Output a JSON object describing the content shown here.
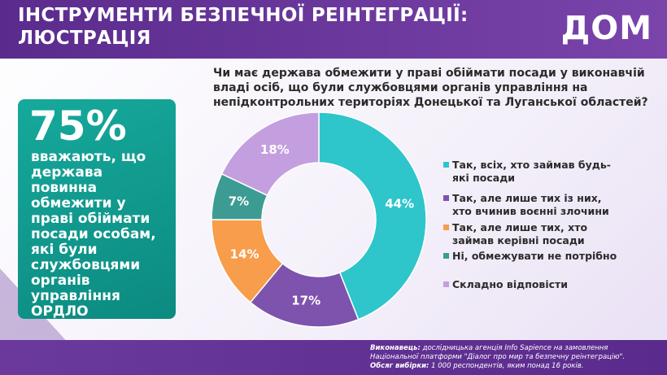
{
  "header": {
    "title_lines": [
      "ІНСТРУМЕНТИ БЕЗПЕЧНОЇ РЕІНТЕГРАЦІЇ:",
      "ЛЮСТРАЦІЯ"
    ],
    "logo": "ДОМ"
  },
  "highlight": {
    "stat": "75%",
    "text_lines": [
      "вважають, що",
      "держава",
      "повинна",
      "обмежити у",
      "праві обіймати",
      "посади особам,",
      "які були",
      "службовцями",
      "органів",
      "управління",
      "ОРДЛО"
    ]
  },
  "chart_data": {
    "type": "donut",
    "title_lines": [
      "Чи має держава обмежити у праві обіймати посади у виконавчій",
      "владі осіб, що були службовцями органів управління на",
      "непідконтрольних територіях Донецької та Луганської областей?"
    ],
    "categories": [
      "Так, всіх, хто займав будь-які посади",
      "Так, але лише тих із них, хто вчинив воєнні злочини",
      "Так, але лише тих, хто займав керівні посади",
      "Ні, обмежувати не потрібно",
      "Складно відповісти"
    ],
    "values": [
      44,
      17,
      14,
      7,
      18
    ],
    "value_labels": [
      "44%",
      "17%",
      "14%",
      "7%",
      "18%"
    ],
    "colors": [
      "#2ec5cb",
      "#7d53ad",
      "#f79d4b",
      "#3c9c94",
      "#c49fe0"
    ]
  },
  "footer": {
    "lines": [
      {
        "label": "Виконавець:",
        "text": " дослідницька агенція Info Sapience на замовлення"
      },
      {
        "label": "",
        "text": "Національної платформи \"Діалог про мир та безпечну реінтеграцію\"."
      },
      {
        "label": "Обсяг вибірки:",
        "text": " 1 000 респондентів, яким понад 16 років."
      }
    ]
  }
}
